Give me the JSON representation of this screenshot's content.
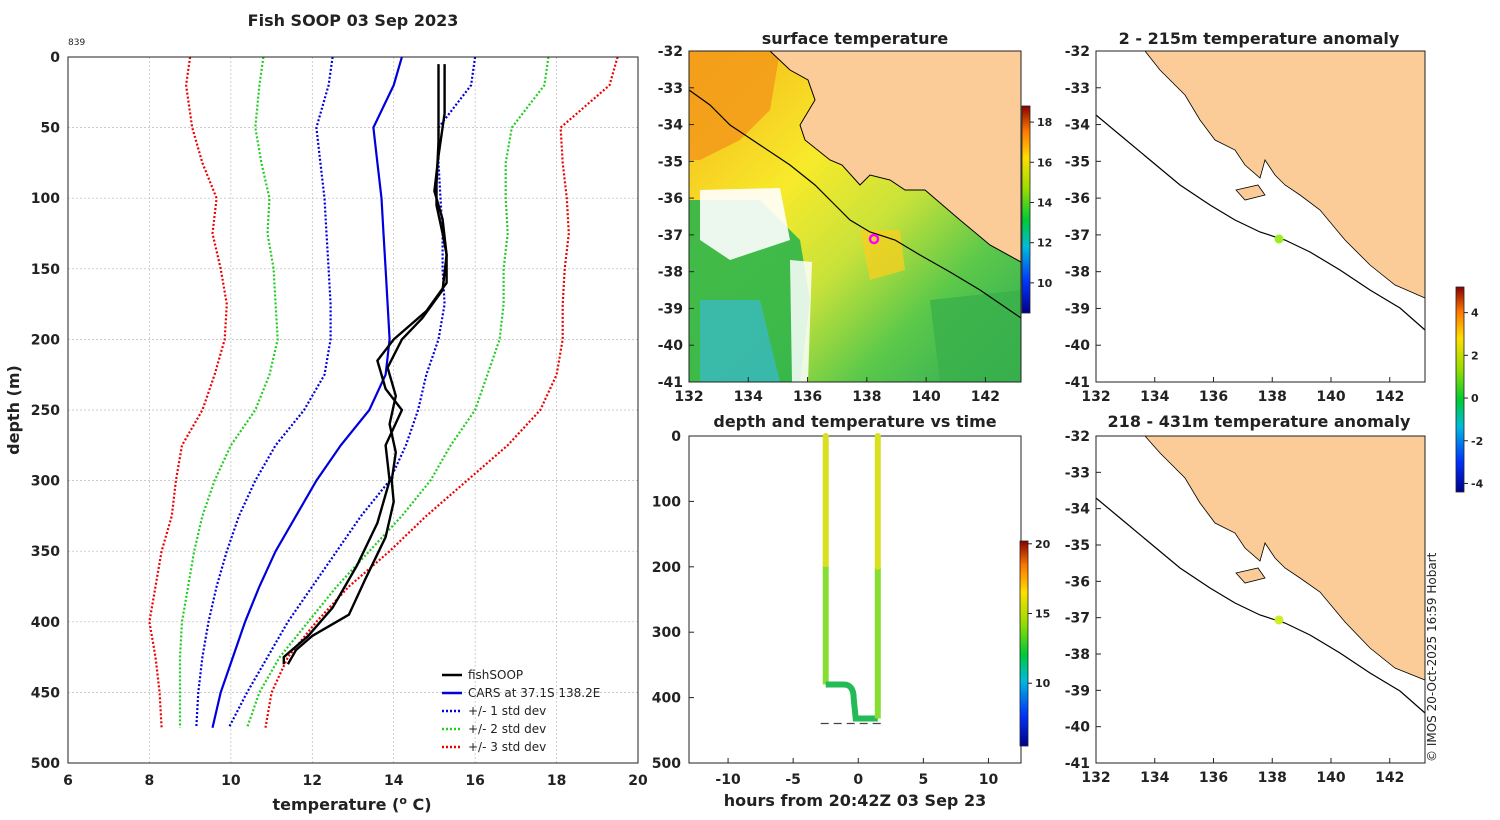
{
  "chart_data": [
    {
      "type": "line",
      "title": "Fish SOOP 03 Sep 2023",
      "id_label": "839",
      "xlabel": "temperature (o C)",
      "ylabel": "depth (m)",
      "xlim": [
        6,
        20
      ],
      "ylim": [
        500,
        0
      ],
      "xticks": [
        6,
        8,
        10,
        12,
        14,
        16,
        18,
        20
      ],
      "yticks": [
        0,
        50,
        100,
        150,
        200,
        250,
        300,
        350,
        400,
        450,
        500
      ],
      "grid": true,
      "legend_position": "bottom-right",
      "legend": [
        "fishSOOP",
        "CARS at 37.1S 138.2E",
        "+/- 1 std dev",
        "+/- 2 std dev",
        "+/- 3 std dev"
      ],
      "colors": {
        "fish": "#000000",
        "cars": "#0000dd",
        "std1": "#0000dd",
        "std2": "#22cc22",
        "std3": "#ee0000"
      },
      "depths": [
        0,
        20,
        50,
        75,
        100,
        125,
        150,
        175,
        200,
        225,
        250,
        275,
        300,
        325,
        350,
        375,
        400,
        425,
        450,
        475
      ],
      "cars": [
        14.2,
        14.0,
        13.5,
        13.6,
        13.7,
        13.75,
        13.8,
        13.85,
        13.9,
        13.8,
        13.4,
        12.7,
        12.1,
        11.6,
        11.1,
        10.7,
        10.35,
        10.05,
        9.75,
        9.55
      ],
      "std1_low": [
        12.5,
        12.4,
        12.1,
        12.2,
        12.3,
        12.35,
        12.4,
        12.45,
        12.45,
        12.3,
        11.8,
        11.1,
        10.6,
        10.2,
        9.9,
        9.65,
        9.45,
        9.3,
        9.2,
        9.15
      ],
      "std1_high": [
        16.0,
        15.9,
        15.1,
        15.1,
        15.15,
        15.2,
        15.2,
        15.25,
        15.1,
        14.8,
        14.6,
        14.3,
        13.9,
        13.2,
        12.6,
        12.0,
        11.4,
        10.9,
        10.4,
        9.95
      ],
      "std2_low": [
        10.8,
        10.7,
        10.6,
        10.75,
        10.95,
        10.9,
        11.05,
        11.1,
        11.15,
        10.95,
        10.6,
        10.0,
        9.6,
        9.3,
        9.1,
        8.95,
        8.8,
        8.75,
        8.75,
        8.75
      ],
      "std2_high": [
        17.8,
        17.7,
        16.9,
        16.75,
        16.75,
        16.8,
        16.7,
        16.7,
        16.6,
        16.3,
        16.0,
        15.4,
        14.9,
        14.2,
        13.4,
        12.6,
        11.9,
        11.2,
        10.7,
        10.4
      ],
      "std3_low": [
        9.0,
        8.9,
        9.05,
        9.3,
        9.65,
        9.55,
        9.75,
        9.9,
        9.85,
        9.6,
        9.3,
        8.8,
        8.65,
        8.55,
        8.3,
        8.15,
        8.0,
        8.15,
        8.25,
        8.3
      ],
      "std3_high": [
        19.5,
        19.3,
        18.1,
        18.15,
        18.25,
        18.3,
        18.2,
        18.15,
        18.15,
        18.0,
        17.6,
        16.8,
        15.8,
        14.8,
        13.9,
        12.9,
        12.1,
        11.4,
        11.0,
        10.85
      ],
      "fish_down": [
        [
          15.1,
          5
        ],
        [
          15.1,
          30
        ],
        [
          15.1,
          60
        ],
        [
          15.05,
          90
        ],
        [
          15.05,
          105
        ],
        [
          15.2,
          125
        ],
        [
          15.3,
          140
        ],
        [
          15.3,
          160
        ],
        [
          14.8,
          180
        ],
        [
          14.0,
          200
        ],
        [
          13.6,
          215
        ],
        [
          13.8,
          235
        ],
        [
          14.2,
          250
        ],
        [
          13.8,
          275
        ],
        [
          13.9,
          300
        ],
        [
          13.6,
          330
        ],
        [
          13.1,
          360
        ],
        [
          12.5,
          390
        ],
        [
          11.9,
          410
        ],
        [
          11.3,
          425
        ],
        [
          11.3,
          430
        ]
      ],
      "fish_up": [
        [
          11.4,
          430
        ],
        [
          11.6,
          420
        ],
        [
          12.0,
          410
        ],
        [
          12.9,
          395
        ],
        [
          13.3,
          370
        ],
        [
          13.8,
          340
        ],
        [
          14.0,
          315
        ],
        [
          13.95,
          300
        ],
        [
          14.05,
          280
        ],
        [
          13.9,
          260
        ],
        [
          14.05,
          240
        ],
        [
          13.85,
          220
        ],
        [
          14.2,
          200
        ],
        [
          14.7,
          185
        ],
        [
          15.2,
          165
        ],
        [
          15.3,
          140
        ],
        [
          15.2,
          115
        ],
        [
          15.0,
          95
        ],
        [
          15.1,
          70
        ],
        [
          15.25,
          40
        ],
        [
          15.25,
          5
        ]
      ]
    },
    {
      "type": "heatmap",
      "title": "surface temperature",
      "xlim": [
        132,
        143.2
      ],
      "ylim": [
        -41,
        -32
      ],
      "xticks": [
        132,
        134,
        136,
        138,
        140,
        142
      ],
      "yticks": [
        -32,
        -33,
        -34,
        -35,
        -36,
        -37,
        -38,
        -39,
        -40,
        -41
      ],
      "colorbar_ticks": [
        10,
        12,
        14,
        16,
        18
      ],
      "marker": {
        "lon": 138.2,
        "lat": -37.1
      }
    },
    {
      "type": "scatter",
      "title": "depth and temperature vs time",
      "xlabel": "hours from 20:42Z 03 Sep 23",
      "xlim": [
        -13,
        12.5
      ],
      "ylim": [
        500,
        0
      ],
      "xticks": [
        -10,
        -5,
        0,
        5,
        10
      ],
      "yticks": [
        0,
        100,
        200,
        300,
        400,
        500
      ],
      "colorbar_ticks": [
        10,
        15,
        20
      ],
      "down_x": -2.5,
      "up_x": 1.5,
      "bottom_depth": 432
    },
    {
      "type": "heatmap",
      "title": "2 - 215m temperature anomaly",
      "xlim": [
        132,
        143.2
      ],
      "ylim": [
        -41,
        -32
      ],
      "xticks": [
        132,
        134,
        136,
        138,
        140,
        142
      ],
      "yticks": [
        -32,
        -33,
        -34,
        -35,
        -36,
        -37,
        -38,
        -39,
        -40,
        -41
      ],
      "colorbar_ticks": [
        -4,
        -2,
        0,
        2,
        4
      ],
      "marker": {
        "lon": 138.2,
        "lat": -37.1
      }
    },
    {
      "type": "heatmap",
      "title": "218 - 431m temperature anomaly",
      "xlim": [
        132,
        143.2
      ],
      "ylim": [
        -41,
        -32
      ],
      "xticks": [
        132,
        134,
        136,
        138,
        140,
        142
      ],
      "yticks": [
        -32,
        -33,
        -34,
        -35,
        -36,
        -37,
        -38,
        -39,
        -40,
        -41
      ],
      "marker": {
        "lon": 138.2,
        "lat": -37.1
      }
    }
  ],
  "credit": "© IMOS 20-Oct-2025 16:59 Hobart"
}
